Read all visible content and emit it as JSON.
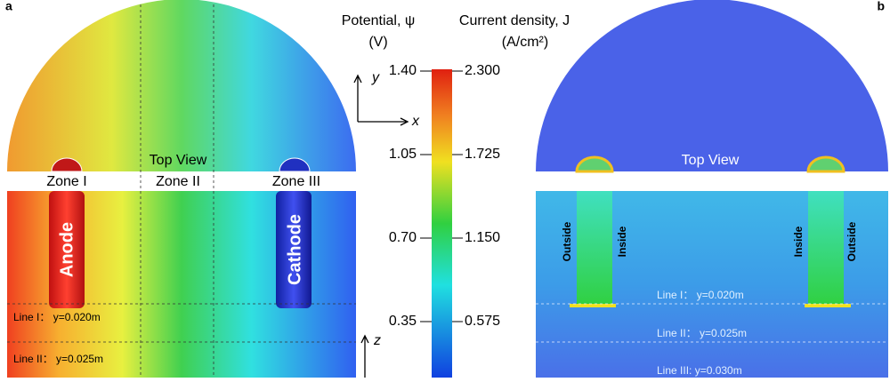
{
  "panel_a": {
    "label": "a",
    "top_view": "Top View",
    "zones": [
      "Zone I",
      "Zone II",
      "Zone III"
    ],
    "electrodes": [
      "Anode",
      "Cathode"
    ],
    "lines": [
      "Line I： y=0.020m",
      "Line II： y=0.025m"
    ]
  },
  "panel_b": {
    "label": "b",
    "top_view": "Top View",
    "sides": [
      "Outside",
      "Inside",
      "Inside",
      "Outside"
    ],
    "lines": [
      "Line I： y=0.020m",
      "Line II： y=0.025m",
      "Line III: y=0.030m"
    ]
  },
  "axes": {
    "y": "y",
    "x": "x",
    "z": "z"
  },
  "colorbar": {
    "left_title": [
      "Potential, ψ",
      "(V)"
    ],
    "right_title": [
      "Current density, J",
      "(A/cm²)"
    ],
    "left_ticks": [
      "1.40",
      "1.05",
      "0.70",
      "0.35"
    ],
    "right_ticks": [
      "2.300",
      "1.725",
      "1.150",
      "0.575"
    ]
  }
}
